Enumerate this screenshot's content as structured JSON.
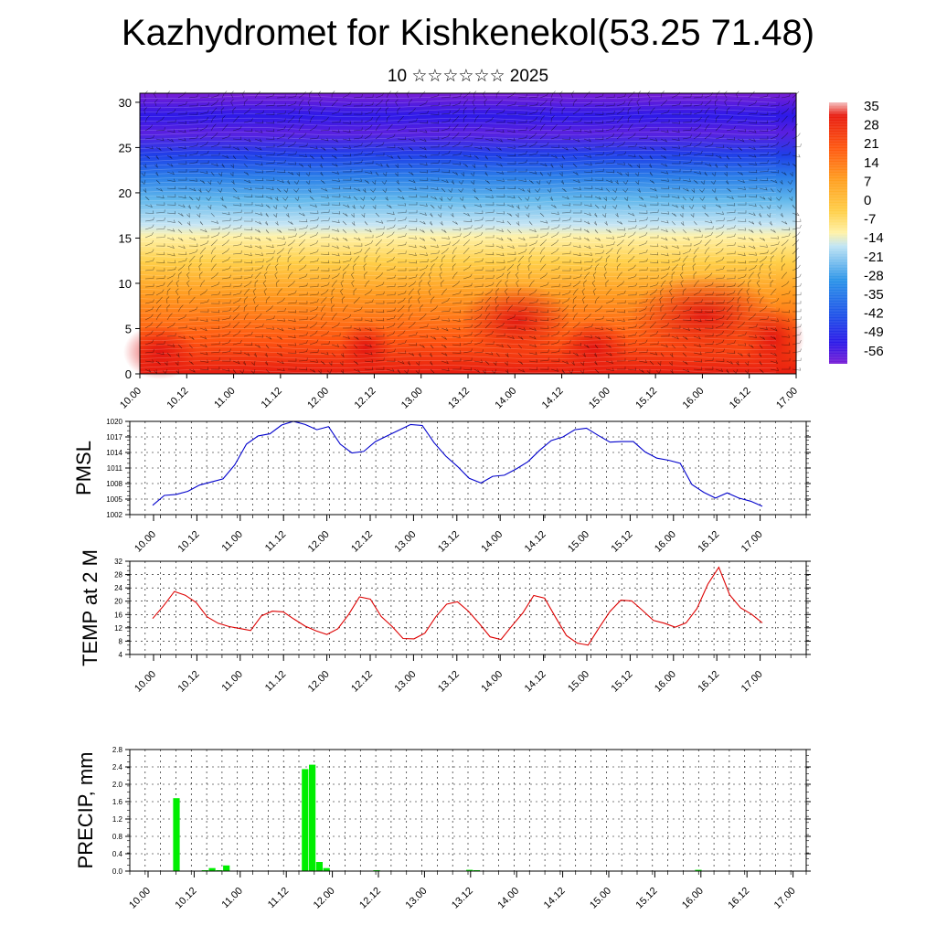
{
  "header": {
    "title": "Kazhydromet for Kishkenekol(53.25 71.48)",
    "subtitle": "10 ☆☆☆☆☆☆ 2025"
  },
  "colors": {
    "pmsl_line": "#0000cc",
    "temp_line": "#dd0000",
    "precip_bar": "#00ee00",
    "colormap": [
      "#7a1fd6",
      "#2c19e8",
      "#1f4fe8",
      "#2b94e8",
      "#8fd0f0",
      "#fff2a8",
      "#ffd04a",
      "#ffa020",
      "#ff6a10",
      "#e81c10",
      "#f4c0c0"
    ]
  },
  "chart_data": [
    {
      "id": "cross-section",
      "type": "heatmap",
      "title": "",
      "xlabel": "",
      "ylabel": "",
      "x_ticks": [
        "10.00",
        "10.12",
        "11.00",
        "11.12",
        "12.00",
        "12.12",
        "13.00",
        "13.12",
        "14.00",
        "14.12",
        "15.00",
        "15.12",
        "16.00",
        "16.12",
        "17.00"
      ],
      "y_ticks": [
        0,
        5,
        10,
        15,
        20,
        25,
        30
      ],
      "ylim": [
        0,
        31
      ],
      "colorbar_labels": [
        35,
        28,
        21,
        14,
        7,
        0,
        -7,
        -14,
        -21,
        -28,
        -35,
        -42,
        -49,
        -56
      ],
      "overlay": "wind barbs",
      "grid": false
    },
    {
      "id": "pmsl",
      "type": "line",
      "ylabel": "PMSL",
      "x_ticks": [
        "10.00",
        "10.12",
        "11.00",
        "11.12",
        "12.00",
        "12.12",
        "13.00",
        "13.12",
        "14.00",
        "14.12",
        "15.00",
        "15.12",
        "16.00",
        "16.12",
        "17.00"
      ],
      "y_ticks": [
        1002,
        1005,
        1008,
        1011,
        1014,
        1017,
        1020
      ],
      "ylim": [
        1002,
        1020
      ],
      "grid": true,
      "series": [
        {
          "values": [
            1003.8,
            1005.7,
            1005.9,
            1006.5,
            1007.7,
            1008.3,
            1008.9,
            1011.6,
            1015.6,
            1017.2,
            1017.6,
            1019.3,
            1020.0,
            1019.4,
            1018.4,
            1019.0,
            1015.6,
            1013.9,
            1014.2,
            1016.1,
            1017.2,
            1018.3,
            1019.4,
            1019.2,
            1015.9,
            1013.3,
            1011.3,
            1009.0,
            1008.1,
            1009.4,
            1009.6,
            1010.8,
            1012.2,
            1014.4,
            1016.3,
            1017.0,
            1018.4,
            1018.7,
            1017.3,
            1016.0,
            1016.1,
            1016.1,
            1014.1,
            1012.9,
            1012.5,
            1011.9,
            1007.8,
            1006.3,
            1005.2,
            1006.2,
            1005.2,
            1004.6,
            1003.6
          ]
        }
      ]
    },
    {
      "id": "temp2m",
      "type": "line",
      "ylabel": "TEMP at 2 M",
      "x_ticks": [
        "10.00",
        "10.12",
        "11.00",
        "11.12",
        "12.00",
        "12.12",
        "13.00",
        "13.12",
        "14.00",
        "14.12",
        "15.00",
        "15.12",
        "16.00",
        "16.12",
        "17.00"
      ],
      "y_ticks": [
        4,
        8,
        12,
        16,
        20,
        24,
        28,
        32
      ],
      "ylim": [
        4,
        32
      ],
      "grid": true,
      "series": [
        {
          "values": [
            14.8,
            18.6,
            22.9,
            21.8,
            19.6,
            15.3,
            13.4,
            12.4,
            11.8,
            11.2,
            15.6,
            17.0,
            16.8,
            14.6,
            12.5,
            11.1,
            10.0,
            11.7,
            16.0,
            21.3,
            20.6,
            15.4,
            12.4,
            8.8,
            8.7,
            10.4,
            15.3,
            19.1,
            19.8,
            17.0,
            13.3,
            9.3,
            8.5,
            12.6,
            16.5,
            21.7,
            20.9,
            15.2,
            9.7,
            7.4,
            6.8,
            12.0,
            16.9,
            20.3,
            20.1,
            17.2,
            14.2,
            13.4,
            12.2,
            13.5,
            17.8,
            25.1,
            30.2,
            21.9,
            18.0,
            16.1,
            13.5
          ]
        }
      ]
    },
    {
      "id": "precip",
      "type": "bar",
      "ylabel": "PRECIP, mm",
      "x_ticks": [
        "10.00",
        "10.12",
        "11.00",
        "11.12",
        "12.00",
        "12.12",
        "13.00",
        "13.12",
        "14.00",
        "14.12",
        "15.00",
        "15.12",
        "16.00",
        "16.12",
        "17.00"
      ],
      "y_ticks": [
        "0.0",
        "0.4",
        "0.8",
        "1.2",
        "1.6",
        "2.0",
        "2.4",
        "2.8"
      ],
      "ylim": [
        0,
        2.8
      ],
      "grid": true,
      "series": [
        {
          "values": [
            0,
            0,
            0,
            0,
            1.68,
            0,
            0,
            0,
            0.02,
            0.07,
            0.02,
            0.13,
            0,
            0,
            0,
            0,
            0,
            0,
            0,
            0,
            0,
            0.01,
            2.35,
            2.45,
            0.21,
            0.07,
            0,
            0,
            0,
            0,
            0,
            0,
            0.02,
            0,
            0,
            0,
            0,
            0,
            0,
            0,
            0,
            0,
            0,
            0,
            0,
            0.03,
            0.02,
            0,
            0,
            0,
            0,
            0,
            0,
            0,
            0,
            0,
            0,
            0,
            0,
            0,
            0,
            0,
            0,
            0,
            0,
            0,
            0,
            0,
            0,
            0,
            0,
            0,
            0,
            0,
            0,
            0,
            0,
            0.03,
            0,
            0,
            0,
            0,
            0,
            0,
            0,
            0,
            0,
            0,
            0,
            0,
            0
          ]
        }
      ]
    }
  ]
}
